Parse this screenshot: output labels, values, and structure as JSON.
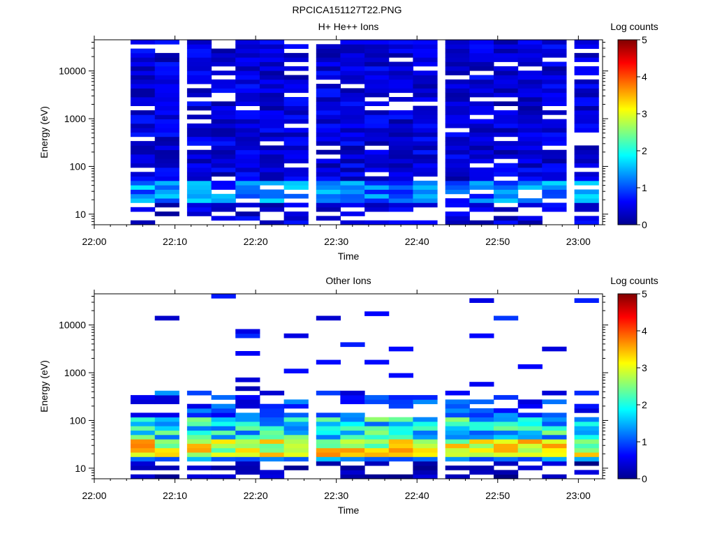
{
  "figure_title": "RPCICA151127T22.PNG",
  "chart_data": [
    {
      "type": "heatmap",
      "title": "H+ He++ Ions",
      "xlabel": "Time",
      "ylabel": "Energy (eV)",
      "yscale": "log",
      "ylim": [
        6,
        45000
      ],
      "xlim": [
        "22:00",
        "23:03"
      ],
      "x_ticks": [
        "22:00",
        "22:10",
        "22:20",
        "22:30",
        "22:40",
        "22:50",
        "23:00"
      ],
      "y_ticks": [
        "10",
        "100",
        "1000",
        "10000"
      ],
      "colorbar": {
        "label": "Log counts",
        "range": [
          0,
          5
        ],
        "ticks": [
          "0",
          "1",
          "2",
          "3",
          "4",
          "5"
        ]
      },
      "time_bins": [
        "22:03",
        "22:06",
        "22:09",
        "22:13",
        "22:16",
        "22:19",
        "22:22",
        "22:25",
        "22:29",
        "22:32",
        "22:35",
        "22:38",
        "22:41",
        "22:45",
        "22:48",
        "22:51",
        "22:54",
        "22:57",
        "23:01"
      ],
      "data_start_bin": 1,
      "notes": "Low-intensity (log counts ~0-1) across energies 6 eV - 40 keV from 22:03 to 23:01; enhancement ~1-2 at 20-50 eV near 22:06-22:11 and 22:42."
    },
    {
      "type": "heatmap",
      "title": "Other Ions",
      "xlabel": "Time",
      "ylabel": "Energy (eV)",
      "yscale": "log",
      "ylim": [
        6,
        45000
      ],
      "xlim": [
        "22:00",
        "23:03"
      ],
      "x_ticks": [
        "22:00",
        "22:10",
        "22:20",
        "22:30",
        "22:40",
        "22:50",
        "23:00"
      ],
      "y_ticks": [
        "10",
        "100",
        "1000",
        "10000"
      ],
      "colorbar": {
        "label": "Log counts",
        "range": [
          0,
          5
        ],
        "ticks": [
          "0",
          "1",
          "2",
          "3",
          "4",
          "5"
        ]
      },
      "time_bins": [
        "22:03",
        "22:06",
        "22:09",
        "22:13",
        "22:16",
        "22:19",
        "22:22",
        "22:25",
        "22:29",
        "22:32",
        "22:35",
        "22:38",
        "22:41",
        "22:45",
        "22:48",
        "22:51",
        "22:54",
        "22:57",
        "23:01"
      ],
      "data_start_bin": 1,
      "notes": "Peak (log counts ~3-4) at 20-40 eV throughout; sparse weak counts up to ~30 keV."
    }
  ]
}
